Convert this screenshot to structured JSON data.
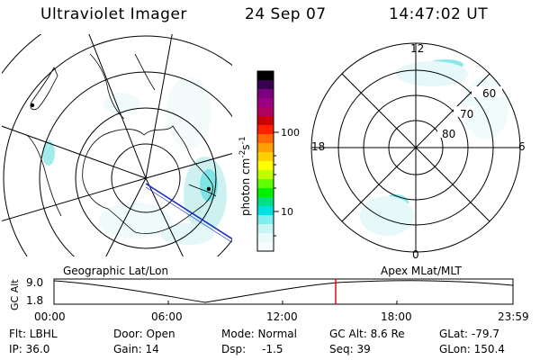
{
  "header": {
    "title": "Ultraviolet Imager",
    "date": "24 Sep 07",
    "time": "14:47:02 UT"
  },
  "colorbar": {
    "label": "photon cm",
    "label_sup1": "-2",
    "label_mid": "s",
    "label_sup2": "-1",
    "ticks": [
      "100",
      "10"
    ],
    "colors": [
      "#000000",
      "#3a0050",
      "#7a0080",
      "#9a0080",
      "#b00060",
      "#cc0000",
      "#ff2000",
      "#ff6a00",
      "#ffa000",
      "#ffd000",
      "#ffff00",
      "#c0ff00",
      "#60ff00",
      "#00f000",
      "#00e08a",
      "#00e0e0",
      "#7feeee",
      "#c8f4f4",
      "#e8fafa",
      "#f4fcfc"
    ]
  },
  "panels": {
    "left_label": "Geographic Lat/Lon",
    "right_label": "Apex MLat/MLT",
    "right_ring_labels": [
      "60",
      "70",
      "80"
    ],
    "right_hours": {
      "top": "12",
      "bottom": "0",
      "left": "18",
      "right": "6"
    }
  },
  "timeline": {
    "ylabel": "GC Alt",
    "ymax": "9.0",
    "ymin": "1.8",
    "xticks": [
      "00:00",
      "06:00",
      "12:00",
      "18:00",
      "23:59"
    ],
    "marker_color": "#e00000"
  },
  "info": {
    "filter": "Flt: LBHL",
    "ip": "IP: 36.0",
    "door": "Door: Open",
    "gain": "Gain: 14",
    "mode": "Mode: Normal",
    "dsp_label": "Dsp:",
    "dsp_value": "-1.5",
    "gc_alt": "GC Alt: 8.6 Re",
    "seq": "Seq: 39",
    "glat": "GLat: -79.7",
    "glon": "GLon: 150.4"
  }
}
